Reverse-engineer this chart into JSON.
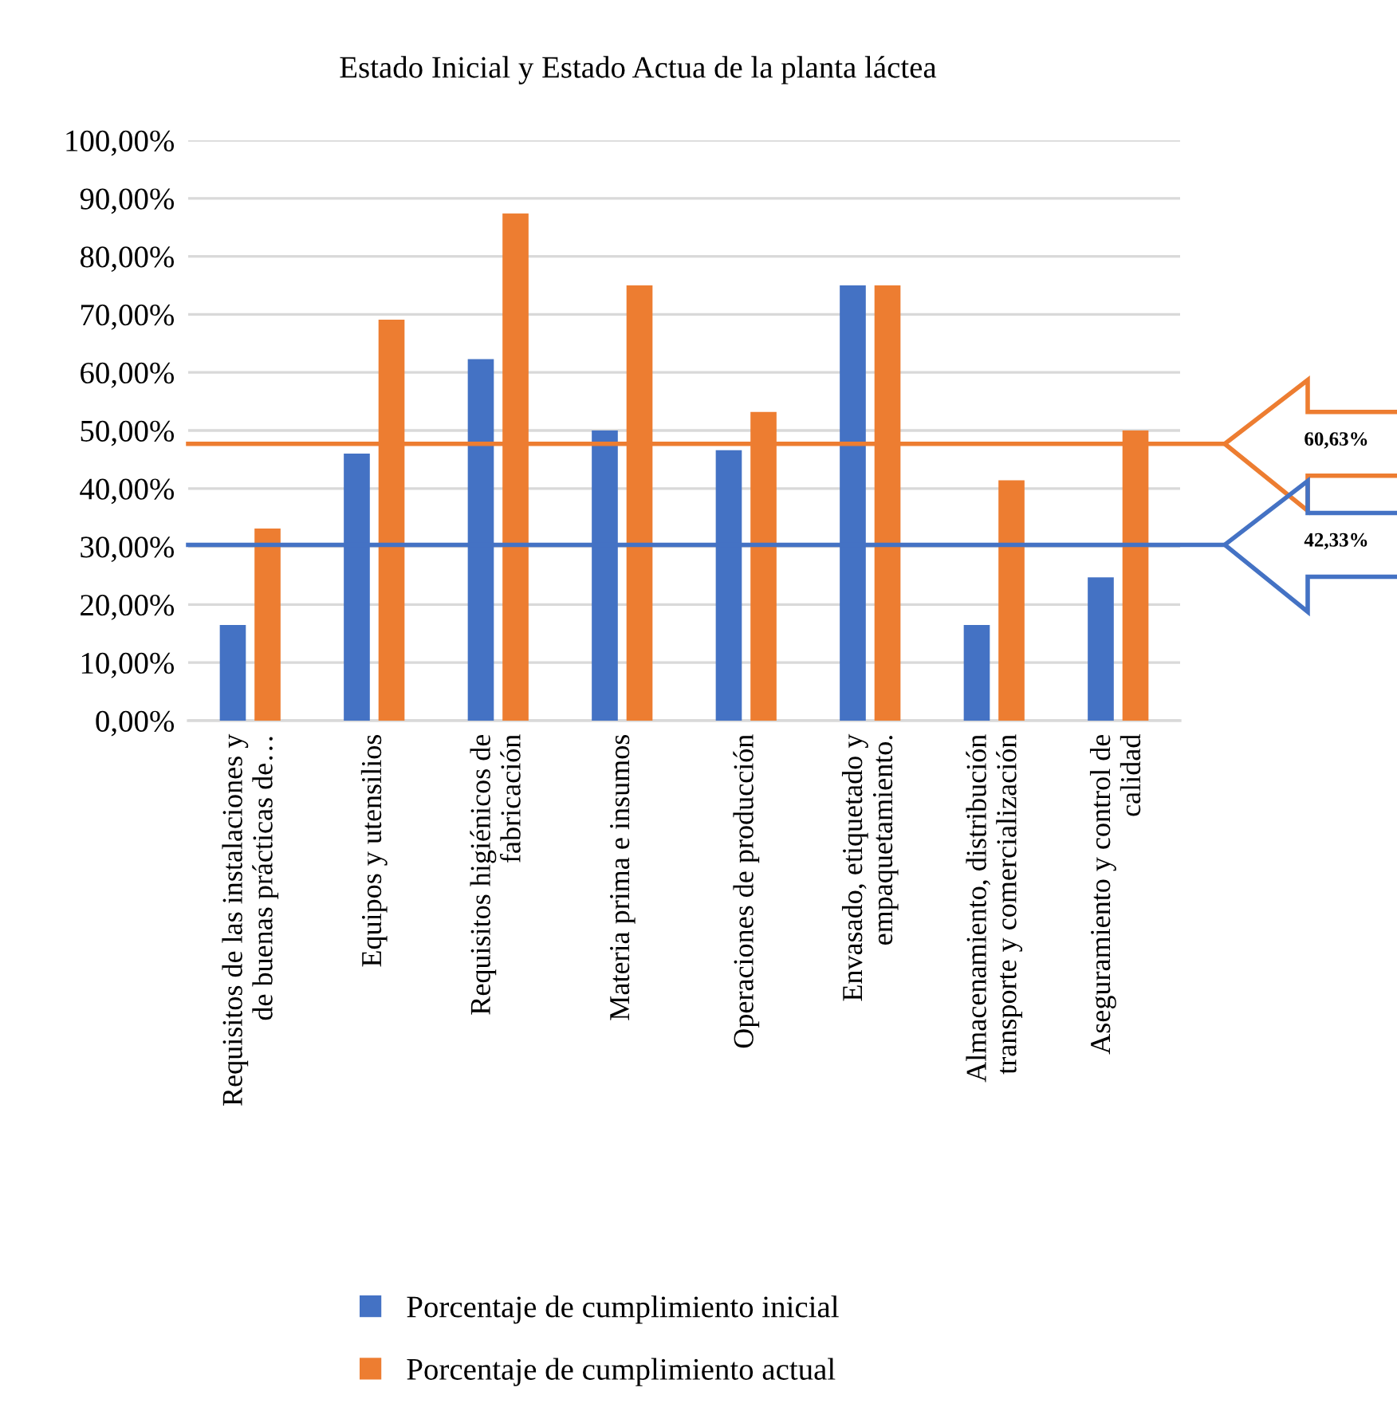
{
  "chart_data": {
    "type": "bar",
    "title": "Estado Inicial y Estado Actua de la planta láctea",
    "categories": [
      "Requisitos de las instalaciones y de buenas prácticas de…",
      "Equipos y utensilios",
      "Requisitos higiénicos de fabricación",
      "Materia prima e insumos",
      "Operaciones de producción",
      "Envasado, etiquetado y empaquetamiento.",
      "Almacenamiento, distribución transporte y comercialización",
      "Aseguramiento y control de calidad"
    ],
    "series": [
      {
        "name": "Porcentaje de cumplimiento inicial",
        "color": "#4472c4",
        "values": [
          16.5,
          46.0,
          62.3,
          50.0,
          46.6,
          75.0,
          16.5,
          24.7
        ]
      },
      {
        "name": "Porcentaje de cumplimiento actual",
        "color": "#ed7d31",
        "values": [
          33.1,
          69.1,
          87.4,
          75.0,
          53.2,
          75.0,
          41.4,
          50.0
        ]
      }
    ],
    "ylim": [
      0,
      100
    ],
    "yticks": [
      {
        "value": 0,
        "label": "0,00%"
      },
      {
        "value": 10,
        "label": "10,00%"
      },
      {
        "value": 20,
        "label": "20,00%"
      },
      {
        "value": 30,
        "label": "30,00%"
      },
      {
        "value": 40,
        "label": "40,00%"
      },
      {
        "value": 50,
        "label": "50,00%"
      },
      {
        "value": 60,
        "label": "60,00%"
      },
      {
        "value": 70,
        "label": "70,00%"
      },
      {
        "value": 80,
        "label": "80,00%"
      },
      {
        "value": 90,
        "label": "90,00%"
      },
      {
        "value": 100,
        "label": "100,00%"
      }
    ],
    "ref_lines": [
      {
        "axis": "y",
        "value": 47.7,
        "color": "#ed7d31"
      },
      {
        "axis": "y",
        "value": 30.3,
        "color": "#4472c4"
      }
    ],
    "annotations": [
      "60,63%",
      "42,33%"
    ],
    "grid": "y",
    "legend": "bottom"
  }
}
